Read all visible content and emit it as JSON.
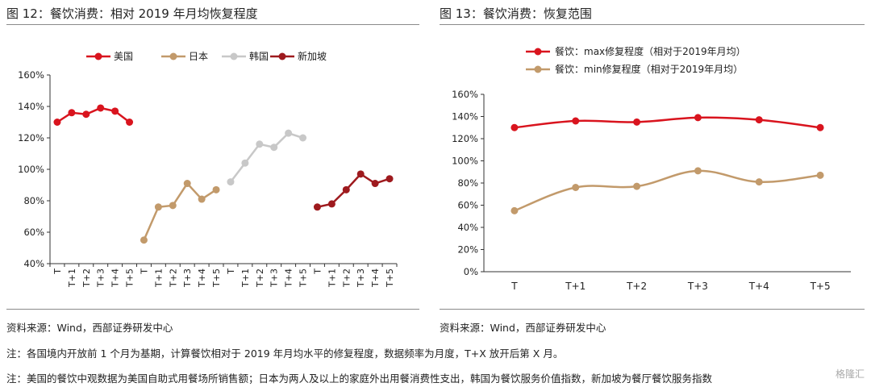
{
  "figures": {
    "left_title": "图 12：餐饮消费：相对 2019 年月均恢复程度",
    "right_title": "图 13：餐饮消费：恢复范围",
    "left_source": "资料来源：Wind，西部证券研发中心",
    "right_source": "资料来源：Wind，西部证券研发中心"
  },
  "notes": {
    "note1": "注：各国境内开放前 1 个月为基期，计算餐饮相对于 2019 年月均水平的修复程度，数据频率为月度，T+X 放开后第 X 月。",
    "note2": "注：美国的餐饮中观数据为美国自助式用餐场所销售额；日本为两人及以上的家庭外出用餐消费性支出，韩国为餐饮服务价值指数，新加坡为餐厅餐饮服务指数"
  },
  "watermark": "格隆汇",
  "chart_data": [
    {
      "type": "line",
      "title": "",
      "xlabel": "",
      "ylabel": "",
      "ylim": [
        40,
        160
      ],
      "yticks": [
        "40%",
        "60%",
        "80%",
        "100%",
        "120%",
        "140%",
        "160%"
      ],
      "categories": [
        "T",
        "T+1",
        "T+2",
        "T+3",
        "T+4",
        "T+5"
      ],
      "legend_position": "top",
      "grid": false,
      "series": [
        {
          "name": "美国",
          "color": "#d9141e",
          "values": [
            130,
            136,
            135,
            139,
            137,
            130
          ]
        },
        {
          "name": "日本",
          "color": "#c29a6b",
          "values": [
            55,
            76,
            77,
            91,
            81,
            87
          ]
        },
        {
          "name": "韩国",
          "color": "#c8c8c8",
          "values": [
            92,
            104,
            116,
            114,
            123,
            120
          ]
        },
        {
          "name": "新加坡",
          "color": "#9e1a1e",
          "values": [
            76,
            78,
            87,
            97,
            91,
            94
          ]
        }
      ]
    },
    {
      "type": "line",
      "title": "",
      "xlabel": "",
      "ylabel": "",
      "ylim": [
        0,
        160
      ],
      "yticks": [
        "0%",
        "20%",
        "40%",
        "60%",
        "80%",
        "100%",
        "120%",
        "140%",
        "160%"
      ],
      "categories": [
        "T",
        "T+1",
        "T+2",
        "T+3",
        "T+4",
        "T+5"
      ],
      "legend_position": "top",
      "grid": false,
      "series": [
        {
          "name": "餐饮：max修复程度（相对于2019年月均）",
          "color": "#d9141e",
          "values": [
            130,
            136,
            135,
            139,
            137,
            130
          ]
        },
        {
          "name": "餐饮：min修复程度（相对于2019年月均）",
          "color": "#c29a6b",
          "values": [
            55,
            76,
            77,
            91,
            81,
            87
          ]
        }
      ]
    }
  ]
}
